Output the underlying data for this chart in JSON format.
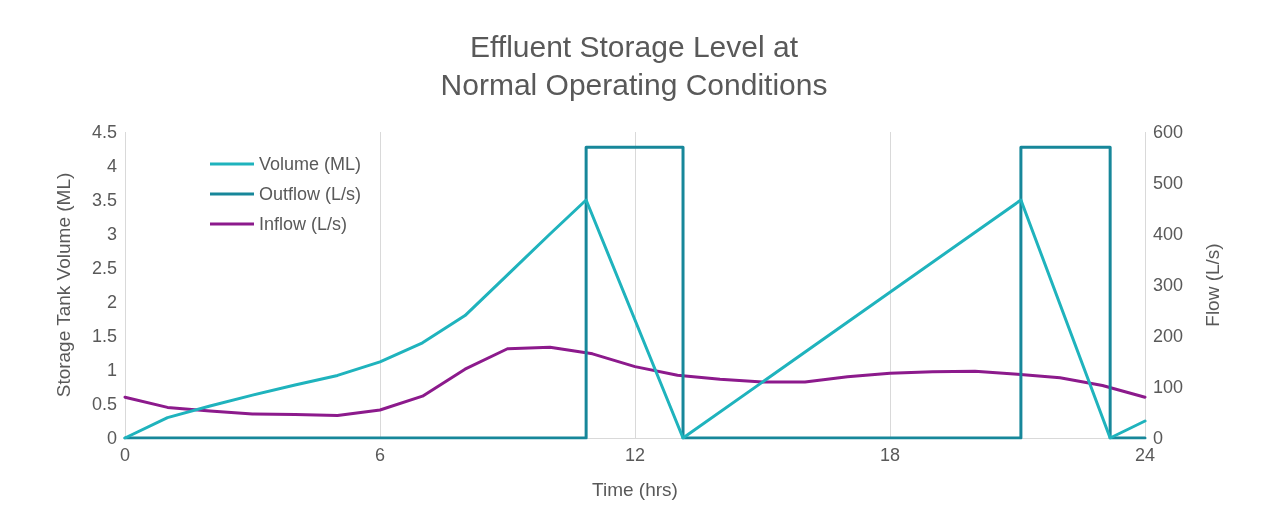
{
  "chart_data": {
    "type": "line",
    "title": "Effluent Storage Level at\nNormal Operating Conditions",
    "xlabel": "Time (hrs)",
    "ylabel": "Storage Tank Volume (ML)",
    "y2label": "Flow (L/s)",
    "xlim": [
      0,
      24
    ],
    "xticks": [
      0,
      6,
      12,
      18,
      24
    ],
    "ylim": [
      0,
      4.5
    ],
    "yticks": [
      0,
      0.5,
      1,
      1.5,
      2,
      2.5,
      3,
      3.5,
      4,
      4.5
    ],
    "y2lim": [
      0,
      600
    ],
    "y2ticks": [
      0,
      100,
      200,
      300,
      400,
      500,
      600
    ],
    "grid": "x",
    "legend": "top left",
    "marker": "none",
    "line_style": "solid",
    "series": [
      {
        "name": "Volume (ML)",
        "color": "#1fb3bd",
        "x": [
          0,
          1,
          2,
          3,
          4,
          5,
          6,
          7,
          8,
          9,
          10,
          10.85,
          13.13,
          21.08,
          23.18,
          24
        ],
        "values": [
          0,
          0.3,
          0.47,
          0.63,
          0.78,
          0.92,
          1.12,
          1.4,
          1.8,
          2.4,
          3.0,
          3.5,
          0,
          3.5,
          0,
          0.25
        ]
      },
      {
        "name": "Outflow (L/s)",
        "color": "#17879a",
        "axis": "y2",
        "x": [
          0,
          10.85,
          10.85,
          13.13,
          13.13,
          21.08,
          21.08,
          23.18,
          23.18,
          24
        ],
        "values": [
          0,
          0,
          570,
          570,
          0,
          0,
          570,
          570,
          0,
          0
        ]
      },
      {
        "name": "Inflow (L/s)",
        "color": "#8c1a8c",
        "axis": "y2",
        "x": [
          0,
          1,
          2,
          3,
          4,
          5,
          6,
          7,
          8,
          9,
          10,
          11,
          12,
          13,
          14,
          15,
          16,
          17,
          18,
          19,
          20,
          21,
          22,
          23,
          24
        ],
        "values": [
          80,
          60,
          53,
          47,
          46,
          44,
          55,
          82,
          135,
          175,
          178,
          165,
          140,
          123,
          115,
          110,
          110,
          120,
          127,
          130,
          131,
          125,
          118,
          103,
          80
        ]
      }
    ]
  }
}
